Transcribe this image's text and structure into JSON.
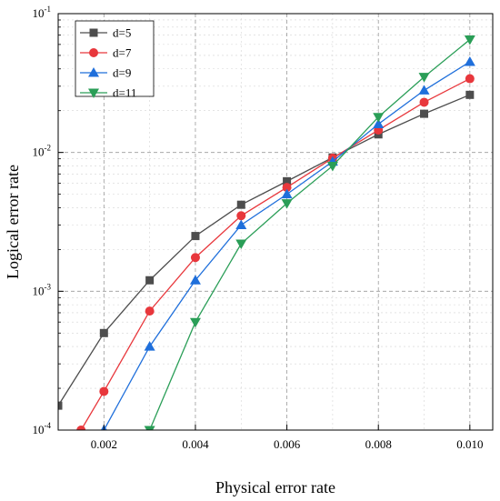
{
  "chart_data": {
    "type": "line",
    "xlabel": "Physical error rate",
    "ylabel": "Logical error rate",
    "xlim": [
      0.001,
      0.0105
    ],
    "ylim": [
      0.0001,
      0.1
    ],
    "y_scale": "log",
    "x_ticks": [
      0.002,
      0.004,
      0.006,
      0.008,
      0.01
    ],
    "x_tick_labels": [
      "0.002",
      "0.004",
      "0.006",
      "0.008",
      "0.010"
    ],
    "y_ticks": [
      {
        "value": 0.0001,
        "base": "10",
        "exp": "-4"
      },
      {
        "value": 0.001,
        "base": "10",
        "exp": "-3"
      },
      {
        "value": 0.01,
        "base": "10",
        "exp": "-2"
      },
      {
        "value": 0.1,
        "base": "10",
        "exp": "-1"
      }
    ],
    "grid": true,
    "legend_position": "top-left",
    "series": [
      {
        "name": "d=5",
        "color": "#4d4d4d",
        "marker": "square",
        "x": [
          0.001,
          0.002,
          0.003,
          0.004,
          0.005,
          0.006,
          0.007,
          0.008,
          0.009,
          0.01
        ],
        "y": [
          0.00015,
          0.0005,
          0.0012,
          0.0025,
          0.0042,
          0.0062,
          0.0092,
          0.0135,
          0.019,
          0.026
        ]
      },
      {
        "name": "d=7",
        "color": "#e8373c",
        "marker": "circle",
        "x": [
          0.0015,
          0.002,
          0.003,
          0.004,
          0.005,
          0.006,
          0.007,
          0.008,
          0.009,
          0.01
        ],
        "y": [
          0.0001,
          0.00019,
          0.00072,
          0.00175,
          0.0035,
          0.0056,
          0.0091,
          0.0145,
          0.023,
          0.034
        ]
      },
      {
        "name": "d=9",
        "color": "#1f6fdb",
        "marker": "triangle-up",
        "x": [
          0.002,
          0.003,
          0.004,
          0.005,
          0.006,
          0.007,
          0.008,
          0.009,
          0.01
        ],
        "y": [
          0.0001,
          0.0004,
          0.0012,
          0.003,
          0.005,
          0.0086,
          0.016,
          0.028,
          0.045
        ]
      },
      {
        "name": "d=11",
        "color": "#2a9e57",
        "marker": "triangle-down",
        "x": [
          0.003,
          0.004,
          0.005,
          0.006,
          0.007,
          0.008,
          0.009,
          0.01
        ],
        "y": [
          0.0001,
          0.0006,
          0.0022,
          0.0043,
          0.008,
          0.018,
          0.035,
          0.065
        ]
      }
    ]
  }
}
